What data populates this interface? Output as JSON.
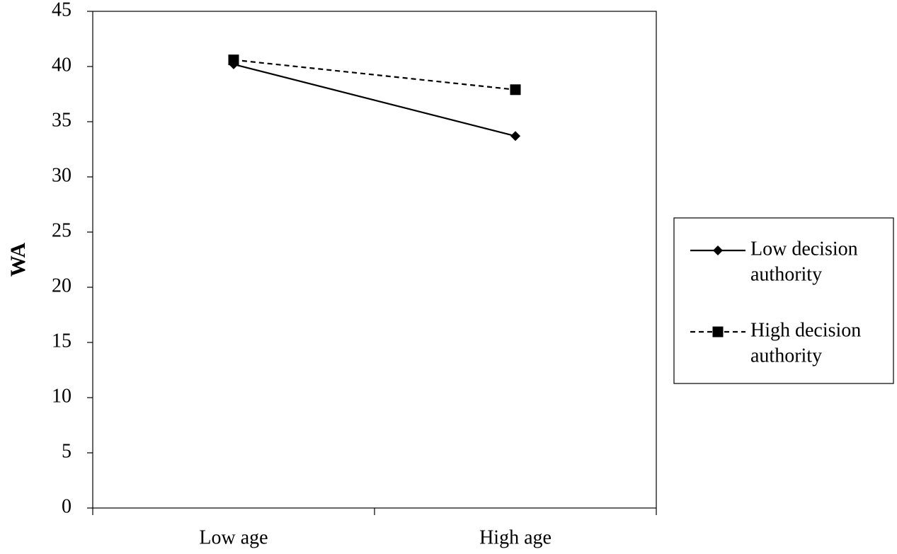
{
  "chart_data": {
    "type": "line",
    "title": "",
    "xlabel": "",
    "ylabel": "WA",
    "categories": [
      "Low age",
      "High age"
    ],
    "ylim": [
      0,
      45
    ],
    "yticks": [
      0,
      5,
      10,
      15,
      20,
      25,
      30,
      35,
      40,
      45
    ],
    "grid": false,
    "legend_position": "right",
    "series": [
      {
        "name_lines": [
          "Low decision",
          "authority"
        ],
        "values": [
          40.2,
          33.7
        ],
        "marker": "diamond",
        "line_style": "solid",
        "color": "#000000"
      },
      {
        "name_lines": [
          "High decision",
          "authority"
        ],
        "values": [
          40.6,
          37.9
        ],
        "marker": "square",
        "line_style": "dashed",
        "color": "#000000"
      }
    ]
  }
}
